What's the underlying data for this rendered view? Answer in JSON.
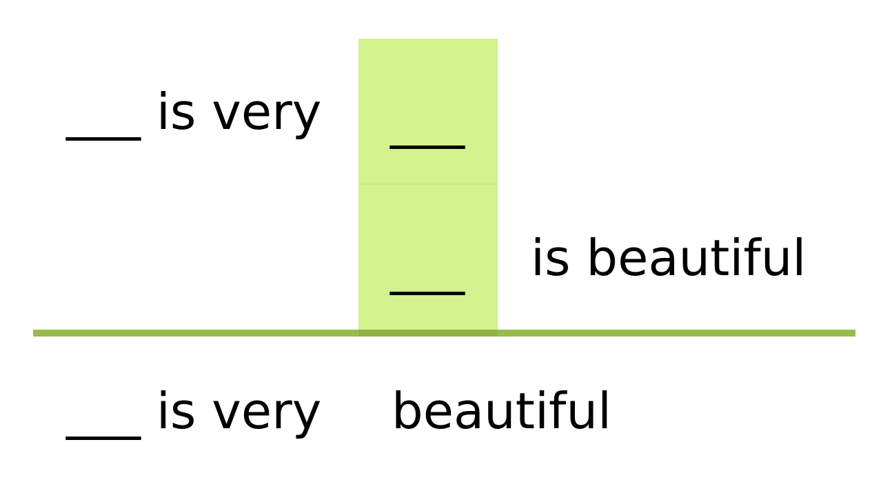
{
  "diagram": {
    "top_row_left": "___ is very",
    "top_row_blank": "___",
    "middle_row_blank": "___",
    "middle_row_right": "is beautiful",
    "bottom_row_left": "___ is very",
    "bottom_row_right": "beautiful"
  },
  "colors": {
    "highlight": "#d1f28d",
    "rule": "#98bc4a",
    "text": "#000000"
  }
}
